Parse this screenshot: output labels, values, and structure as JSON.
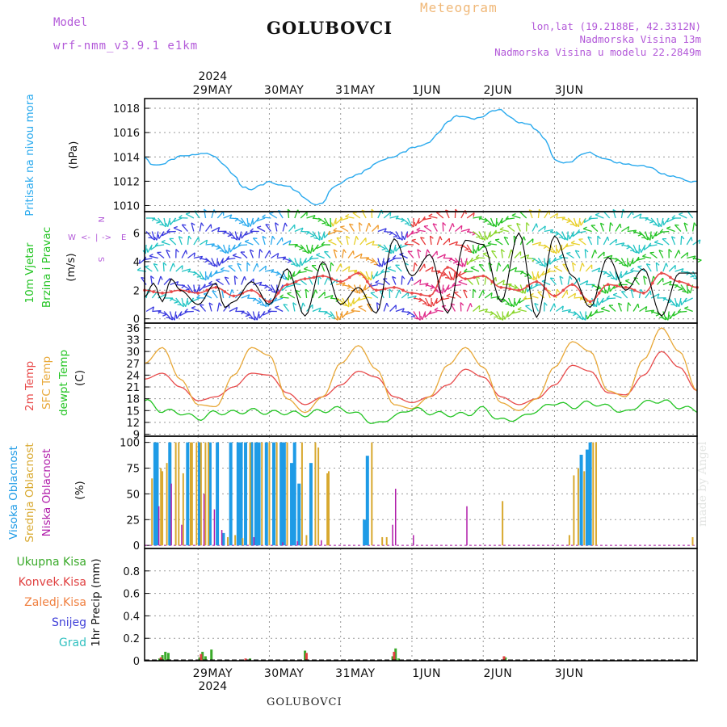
{
  "header": {
    "model_label": "Model",
    "model_name": "wrf-nmm_v3.9.1 e1km",
    "station": "GOLUBOVCI",
    "meteogram": "Meteogram",
    "lonlat": "lon,lat (19.2188E, 42.3312N)",
    "elevation": "Nadmorska Visina 13m",
    "model_elevation": "Nadmorska Visina u modelu 22.2849m"
  },
  "footer": {
    "station": "GOLUBOVCI",
    "credit": "made by Angel"
  },
  "colors": {
    "pressure": "#2aaaee",
    "temp2m": "#e84a4a",
    "sfc_temp": "#e8a838",
    "dewpt": "#22c422",
    "cloud_high": "#1e9be6",
    "cloud_mid": "#d8a82e",
    "cloud_low": "#b01eaa",
    "rain_total": "#3aaa2a",
    "rain_conv": "#e04040",
    "rain_frz": "#f08040",
    "snow": "#4040d8",
    "grad": "#30c0c0",
    "wind_label": "#24c424",
    "compass": "#b35ad9"
  },
  "chart_data": [
    {
      "type": "line",
      "panel": "pressure",
      "ylabel": [
        "Pritisak na nivou mora",
        "(hPa)"
      ],
      "yticks": [
        1010,
        1012,
        1014,
        1016,
        1018
      ],
      "ylim": [
        1009.5,
        1018.8
      ],
      "x_top_labels": [
        "29MAY",
        "30MAY",
        "31MAY",
        "1JUN",
        "2JUN",
        "3JUN"
      ],
      "x_top_year": "2024",
      "x_unit": "hours from 2024-05-28 18:00",
      "x": [
        0,
        2,
        4,
        6,
        9,
        12,
        15,
        18,
        21,
        24,
        27,
        30,
        33,
        36,
        39,
        42,
        45,
        48,
        51,
        54,
        57,
        60,
        63,
        66,
        69,
        72,
        75,
        78,
        81,
        84,
        87,
        90,
        93,
        96,
        99,
        102,
        105,
        108,
        111,
        114,
        117,
        120,
        123,
        126,
        129,
        132,
        135,
        138,
        141,
        144,
        147,
        150,
        153,
        156,
        159,
        162,
        165,
        168,
        171,
        174,
        177,
        180,
        183,
        186
      ],
      "values": [
        1014.0,
        1013.4,
        1013.3,
        1013.4,
        1013.8,
        1014.1,
        1014.1,
        1014.2,
        1014.3,
        1014.0,
        1013.3,
        1012.5,
        1011.5,
        1011.3,
        1011.7,
        1012.0,
        1011.7,
        1011.6,
        1011.2,
        1010.6,
        1010.1,
        1010.2,
        1011.4,
        1011.8,
        1012.3,
        1012.6,
        1013.0,
        1013.5,
        1013.8,
        1014.0,
        1014.4,
        1014.8,
        1014.9,
        1015.2,
        1016.0,
        1016.9,
        1017.4,
        1017.3,
        1017.1,
        1017.3,
        1017.8,
        1017.9,
        1017.3,
        1016.8,
        1016.7,
        1016.2,
        1015.4,
        1013.8,
        1013.5,
        1013.6,
        1014.2,
        1014.4,
        1014.0,
        1013.8,
        1013.5,
        1013.4,
        1013.3,
        1013.3,
        1013.1,
        1012.6,
        1012.4,
        1012.3,
        1012.0,
        1012.0
      ]
    },
    {
      "type": "line",
      "panel": "wind",
      "ylabel": [
        "10m Vjetar",
        "Brzina i Pravac",
        "(m/s)"
      ],
      "compass": [
        "N",
        "W",
        "<-",
        "|",
        "->",
        "E",
        "S"
      ],
      "yticks": [
        0,
        2,
        4,
        6
      ],
      "ylim": [
        -0.3,
        7.5
      ],
      "x_unit": "hours from 2024-05-28 18:00",
      "series": [
        {
          "x": [
            0,
            6,
            12,
            18,
            24,
            30,
            36,
            42,
            48,
            54,
            60,
            66,
            72,
            78,
            84,
            90,
            96,
            102,
            108,
            114,
            120,
            126,
            132,
            138,
            144,
            150,
            156,
            162,
            168,
            174,
            180,
            186
          ],
          "values": [
            2.0,
            1.8,
            2.0,
            1.8,
            2.2,
            1.6,
            2.0,
            1.2,
            2.4,
            2.8,
            3.0,
            2.6,
            3.2,
            2.0,
            2.2,
            1.8,
            1.6,
            3.6,
            2.8,
            3.0,
            2.2,
            2.0,
            2.6,
            1.6,
            2.4,
            1.2,
            2.4,
            2.2,
            1.8,
            3.2,
            2.6,
            2.2
          ]
        },
        {
          "x": [
            0,
            3,
            6,
            9,
            12,
            18,
            24,
            27,
            30,
            36,
            42,
            48,
            54,
            60,
            66,
            72,
            78,
            84,
            90,
            96,
            102,
            108,
            114,
            120,
            126,
            132,
            138,
            144,
            150,
            156,
            162,
            168,
            174,
            180,
            186
          ],
          "values": [
            1.5,
            2.5,
            1.2,
            2.8,
            2.0,
            1.0,
            2.5,
            0.8,
            1.2,
            2.6,
            1.0,
            3.5,
            0.2,
            4.0,
            1.0,
            2.2,
            0.4,
            5.6,
            3.0,
            4.5,
            0.4,
            5.5,
            5.2,
            1.2,
            6.0,
            0.1,
            5.8,
            3.0,
            0.8,
            4.3,
            2.0,
            3.5,
            0.2,
            3.2,
            3.2
          ]
        }
      ]
    },
    {
      "type": "line",
      "panel": "temperature",
      "ylabel": [
        "2m Temp",
        "SFC Temp",
        "dewpt Temp",
        "(C)"
      ],
      "yticks": [
        9,
        12,
        15,
        18,
        21,
        24,
        27,
        30,
        33,
        36
      ],
      "ylim": [
        8.5,
        37.2
      ],
      "x_unit": "hours from 2024-05-28 18:00",
      "x": [
        0,
        6,
        12,
        18,
        24,
        30,
        36,
        42,
        48,
        54,
        60,
        66,
        72,
        78,
        84,
        90,
        96,
        102,
        108,
        114,
        120,
        126,
        132,
        138,
        144,
        150,
        156,
        162,
        168,
        174,
        180,
        186
      ],
      "series": [
        {
          "name": "2m Temp",
          "values": [
            23.0,
            24.5,
            21.0,
            17.5,
            18.5,
            21.0,
            24.5,
            24.0,
            19.5,
            16.5,
            18.5,
            21.5,
            25.0,
            23.5,
            18.5,
            17.0,
            18.5,
            21.5,
            25.5,
            23.5,
            18.5,
            16.5,
            18.0,
            21.5,
            26.5,
            25.0,
            19.5,
            19.0,
            24.0,
            30.0,
            26.0,
            20.0
          ]
        },
        {
          "name": "SFC Temp",
          "values": [
            27.0,
            31.0,
            23.0,
            16.5,
            16.0,
            24.0,
            31.0,
            29.0,
            18.0,
            14.5,
            18.5,
            27.0,
            31.5,
            25.5,
            16.5,
            15.5,
            18.5,
            26.5,
            31.0,
            26.0,
            17.0,
            15.0,
            18.0,
            26.0,
            32.5,
            30.0,
            20.0,
            18.5,
            28.0,
            36.0,
            30.0,
            20.0
          ]
        },
        {
          "name": "dewpt Temp",
          "values": [
            17.5,
            15.0,
            14.5,
            13.0,
            14.5,
            14.5,
            15.0,
            14.5,
            14.5,
            14.0,
            15.0,
            15.5,
            14.0,
            11.5,
            13.5,
            15.5,
            14.5,
            14.0,
            14.0,
            15.5,
            12.5,
            13.0,
            15.0,
            17.0,
            16.0,
            17.0,
            16.0,
            14.5,
            17.0,
            17.5,
            16.0,
            15.0
          ]
        }
      ]
    },
    {
      "type": "bar",
      "panel": "clouds",
      "ylabel": [
        "Visoka Oblacnost",
        "Srednja Oblacnost",
        "Niska Oblacnost",
        "(%)"
      ],
      "yticks": [
        0,
        25,
        50,
        75,
        100
      ],
      "ylim": [
        -3,
        106
      ],
      "x_unit": "hours from 2024-05-28 18:00",
      "series": [
        {
          "name": "Visoka Oblacnost",
          "x": [
            3.5,
            4.2,
            8.5,
            14.5,
            18.5,
            22.0,
            24.5,
            26.5,
            29.0,
            31.5,
            32.5,
            34.0,
            36.0,
            37.5,
            38.5,
            41.0,
            43.5,
            46.0,
            47.0,
            49.5,
            50.5,
            52.0,
            56.0,
            74.0,
            75.0,
            147.0,
            149.0,
            150.0
          ],
          "values": [
            100,
            100,
            100,
            100,
            100,
            100,
            100,
            12,
            100,
            100,
            100,
            100,
            100,
            100,
            100,
            100,
            100,
            100,
            100,
            80,
            100,
            60,
            80,
            25,
            87,
            88,
            93,
            100
          ]
        },
        {
          "name": "Srednja Oblacnost",
          "x": [
            2.5,
            5.5,
            6.0,
            7.5,
            10.5,
            11.5,
            13.0,
            15.5,
            16.0,
            17.5,
            19.0,
            20.5,
            21.5,
            28.0,
            30.5,
            33.0,
            35.5,
            39.5,
            42.0,
            44.5,
            48.0,
            53.0,
            54.5,
            57.5,
            58.5,
            61.5,
            62.0,
            76.5,
            80.0,
            81.5,
            120.5,
            143.0,
            144.5,
            146.0,
            148.0,
            151.0,
            152.0,
            184.5
          ],
          "values": [
            65,
            75,
            72,
            80,
            100,
            100,
            70,
            100,
            100,
            100,
            100,
            100,
            100,
            8,
            10,
            7,
            100,
            100,
            100,
            100,
            100,
            100,
            10,
            100,
            95,
            70,
            72,
            100,
            8,
            8,
            43,
            10,
            68,
            75,
            72,
            100,
            100,
            8
          ]
        },
        {
          "name": "Niska Oblacnost",
          "x": [
            4.8,
            9.0,
            12.5,
            20.0,
            23.5,
            26.0,
            36.8,
            46.5,
            51.5,
            59.5,
            83.5,
            84.5,
            90.5,
            108.5
          ],
          "values": [
            38,
            60,
            20,
            50,
            35,
            15,
            8,
            3,
            4,
            5,
            20,
            55,
            10,
            38
          ]
        }
      ]
    },
    {
      "type": "bar",
      "panel": "precipitation",
      "ylabel": [
        "1hr Precip (mm)"
      ],
      "legend": [
        "Ukupna Kisa",
        "Konvek.Kisa",
        "Zaledj.Kisa",
        "Snijeg",
        "Grad"
      ],
      "yticks": [
        0,
        0.2,
        0.4,
        0.6,
        0.8
      ],
      "ylim": [
        0,
        1.0
      ],
      "x_bottom_labels": [
        "29MAY",
        "30MAY",
        "31MAY",
        "1JUN",
        "2JUN",
        "3JUN"
      ],
      "x_bottom_year": "2024",
      "x_unit": "hours from 2024-05-28 18:00",
      "series": [
        {
          "name": "Ukupna Kisa",
          "x": [
            5.0,
            6.0,
            7.0,
            8.0,
            18.5,
            19.5,
            20.5,
            22.5,
            35.5,
            54.0,
            83.5,
            84.5,
            85.5,
            121.5
          ],
          "values": [
            0.02,
            0.05,
            0.08,
            0.07,
            0.03,
            0.08,
            0.04,
            0.1,
            0.02,
            0.09,
            0.04,
            0.11,
            0.02,
            0.03
          ]
        },
        {
          "name": "Konvek.Kisa",
          "x": [
            5.5,
            19.0,
            34.0,
            54.5,
            84.0,
            121.0
          ],
          "values": [
            0.03,
            0.06,
            0.02,
            0.07,
            0.08,
            0.04
          ]
        }
      ]
    }
  ]
}
